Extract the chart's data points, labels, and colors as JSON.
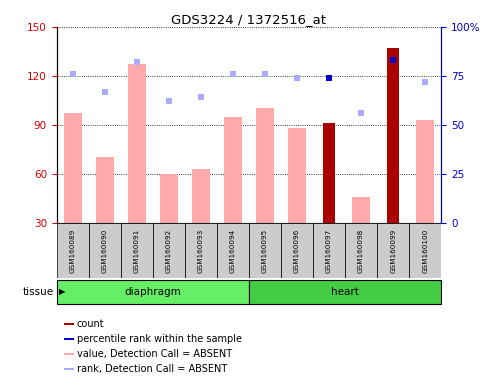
{
  "title": "GDS3224 / 1372516_at",
  "samples": [
    "GSM160089",
    "GSM160090",
    "GSM160091",
    "GSM160092",
    "GSM160093",
    "GSM160094",
    "GSM160095",
    "GSM160096",
    "GSM160097",
    "GSM160098",
    "GSM160099",
    "GSM160100"
  ],
  "value_absent": [
    97,
    70,
    127,
    60,
    63,
    95,
    100,
    88,
    null,
    46,
    null,
    93
  ],
  "rank_absent_pct": [
    76,
    67,
    82,
    62,
    64,
    76,
    76,
    74,
    null,
    56,
    null,
    72
  ],
  "count": [
    null,
    null,
    null,
    null,
    null,
    null,
    null,
    null,
    91,
    null,
    137,
    null
  ],
  "percentile_rank_pct": [
    null,
    null,
    null,
    null,
    null,
    null,
    null,
    null,
    74,
    null,
    83,
    null
  ],
  "ylim_left": [
    30,
    150
  ],
  "ylim_right": [
    0,
    100
  ],
  "yticks_left": [
    30,
    60,
    90,
    120,
    150
  ],
  "yticks_right": [
    0,
    25,
    50,
    75,
    100
  ],
  "color_count": "#aa0000",
  "color_percentile": "#0000cc",
  "color_value_absent": "#ffaaaa",
  "color_rank_absent": "#aaaaff",
  "color_diaphragm": "#66ee66",
  "color_heart": "#44cc44",
  "color_bg_samples": "#cccccc",
  "color_axis_left": "#cc0000",
  "color_axis_right": "#0000cc",
  "tissue_label": "tissue",
  "groups": [
    {
      "label": "diaphragm",
      "start": 0,
      "end": 5
    },
    {
      "label": "heart",
      "start": 6,
      "end": 11
    }
  ],
  "legend_items": [
    {
      "color": "#aa0000",
      "label": "count"
    },
    {
      "color": "#0000cc",
      "label": "percentile rank within the sample"
    },
    {
      "color": "#ffaaaa",
      "label": "value, Detection Call = ABSENT"
    },
    {
      "color": "#aaaaff",
      "label": "rank, Detection Call = ABSENT"
    }
  ]
}
